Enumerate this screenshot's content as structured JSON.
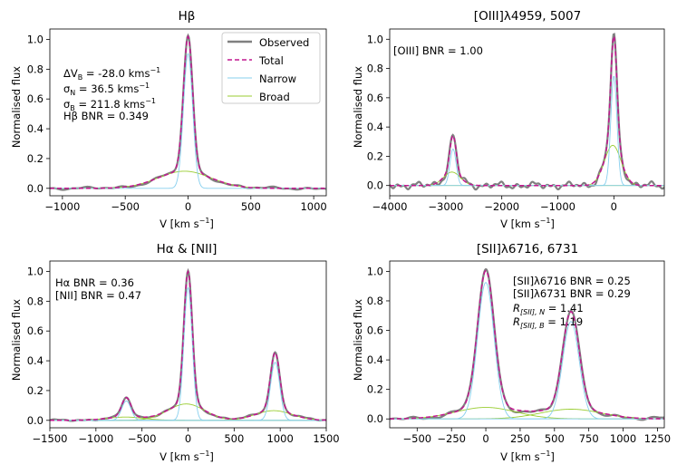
{
  "figure": {
    "panel_count": 4
  },
  "legend": {
    "observed": "Observed",
    "total": "Total",
    "narrow": "Narrow",
    "broad": "Broad"
  },
  "colors": {
    "observed": "#808080",
    "total": "#c2188f",
    "narrow": "#87cfee",
    "broad": "#9acd32"
  },
  "annotations": {
    "hb_dv_prefix": "ΔV",
    "hb_dv_sub": "B",
    "hb_dv_value": " = -28.0 kms",
    "hb_sn_prefix": "σ",
    "hb_sn_sub": "N",
    "hb_sn_value": " = 36.5 kms",
    "hb_sb_prefix": "σ",
    "hb_sb_sub": "B",
    "hb_sb_value": " = 211.8 kms",
    "unit_exp": "−1",
    "hb_bnr": "Hβ BNR = 0.349",
    "oiii_bnr": "[OIII] BNR = 1.00",
    "ha_bnr": "Hα BNR = 0.36",
    "nii_bnr": "[NII] BNR = 0.47",
    "sii6716_bnr": "[SII]λ6716 BNR = 0.25",
    "sii6731_bnr": "[SII]λ6731 BNR = 0.29",
    "rn_label": "R",
    "rn_sub": "[SII], N",
    "rn_value": " = 1.41",
    "rb_label": "R",
    "rb_sub": "[SII], B",
    "rb_value": " = 1.19"
  },
  "chart_data": [
    {
      "type": "line",
      "title": "Hβ",
      "xlabel": "V [km s",
      "xlabel_exp": "−1",
      "xlabel_close": "]",
      "ylabel": "Normalised flux",
      "xlim": [
        -1100,
        1100
      ],
      "ylim": [
        -0.05,
        1.07
      ],
      "xticks": [
        -1000,
        -500,
        0,
        500,
        1000
      ],
      "xtick_labels": [
        "−1000",
        "−500",
        "0",
        "500",
        "1000"
      ],
      "yticks": [
        0.0,
        0.2,
        0.4,
        0.6,
        0.8,
        1.0
      ],
      "ytick_labels": [
        "0.0",
        "0.2",
        "0.4",
        "0.6",
        "0.8",
        "1.0"
      ],
      "narrow": [
        {
          "amp": 0.905,
          "center": 0,
          "sigma": 36.5
        }
      ],
      "broad": [
        {
          "amp": 0.115,
          "center": -28,
          "sigma": 211.8
        }
      ],
      "total_fill_amp": 1.0,
      "observed_peak": 1.02,
      "noise_amp": 0.008
    },
    {
      "type": "line",
      "title": "[OIII]λ4959, 5007",
      "xlabel": "V [km s",
      "xlabel_exp": "−1",
      "xlabel_close": "]",
      "ylabel": "Normalised flux",
      "xlim": [
        -4000,
        900
      ],
      "ylim": [
        -0.07,
        1.07
      ],
      "xticks": [
        -4000,
        -3000,
        -2000,
        -1000,
        0
      ],
      "xtick_labels": [
        "−4000",
        "−3000",
        "−2000",
        "−1000",
        "0"
      ],
      "yticks": [
        0.0,
        0.2,
        0.4,
        0.6,
        0.8,
        1.0
      ],
      "ytick_labels": [
        "0.0",
        "0.2",
        "0.4",
        "0.6",
        "0.8",
        "1.0"
      ],
      "narrow": [
        {
          "amp": 0.75,
          "center": 0,
          "sigma": 55
        },
        {
          "amp": 0.25,
          "center": -2870,
          "sigma": 55
        }
      ],
      "broad": [
        {
          "amp": 0.275,
          "center": -20,
          "sigma": 150
        },
        {
          "amp": 0.092,
          "center": -2890,
          "sigma": 150
        }
      ],
      "noise_amp": 0.02
    },
    {
      "type": "line",
      "title": "Hα & [NII]",
      "xlabel": "V [km s",
      "xlabel_exp": "−1",
      "xlabel_close": "]",
      "ylabel": "Normalised flux",
      "xlim": [
        -1500,
        1500
      ],
      "ylim": [
        -0.05,
        1.07
      ],
      "xticks": [
        -1500,
        -1000,
        -500,
        0,
        500,
        1000,
        1500
      ],
      "xtick_labels": [
        "−1500",
        "−1000",
        "−500",
        "0",
        "500",
        "1000",
        "1500"
      ],
      "yticks": [
        0.0,
        0.2,
        0.4,
        0.6,
        0.8,
        1.0
      ],
      "ytick_labels": [
        "0.0",
        "0.2",
        "0.4",
        "0.6",
        "0.8",
        "1.0"
      ],
      "narrow": [
        {
          "amp": 0.89,
          "center": 0,
          "sigma": 45
        },
        {
          "amp": 0.39,
          "center": 945,
          "sigma": 50
        },
        {
          "amp": 0.13,
          "center": -670,
          "sigma": 50
        }
      ],
      "broad": [
        {
          "amp": 0.11,
          "center": -20,
          "sigma": 200
        },
        {
          "amp": 0.065,
          "center": 930,
          "sigma": 200
        },
        {
          "amp": 0.022,
          "center": -680,
          "sigma": 200
        }
      ],
      "noise_amp": 0.005
    },
    {
      "type": "line",
      "title": "[SII]λ6716, 6731",
      "xlabel": "V [km s",
      "xlabel_exp": "−1",
      "xlabel_close": "]",
      "ylabel": "Normalised flux",
      "xlim": [
        -700,
        1300
      ],
      "ylim": [
        -0.06,
        1.07
      ],
      "xticks": [
        -500,
        -250,
        0,
        250,
        500,
        750,
        1000,
        1250
      ],
      "xtick_labels": [
        "−500",
        "−250",
        "0",
        "250",
        "500",
        "750",
        "1000",
        "1250"
      ],
      "yticks": [
        0.0,
        0.2,
        0.4,
        0.6,
        0.8,
        1.0
      ],
      "ytick_labels": [
        "0.0",
        "0.2",
        "0.4",
        "0.6",
        "0.8",
        "1.0"
      ],
      "narrow": [
        {
          "amp": 0.925,
          "center": 0,
          "sigma": 60
        },
        {
          "amp": 0.66,
          "center": 620,
          "sigma": 60
        }
      ],
      "broad": [
        {
          "amp": 0.078,
          "center": 0,
          "sigma": 220
        },
        {
          "amp": 0.066,
          "center": 620,
          "sigma": 220
        }
      ],
      "noise_amp": 0.012
    }
  ]
}
